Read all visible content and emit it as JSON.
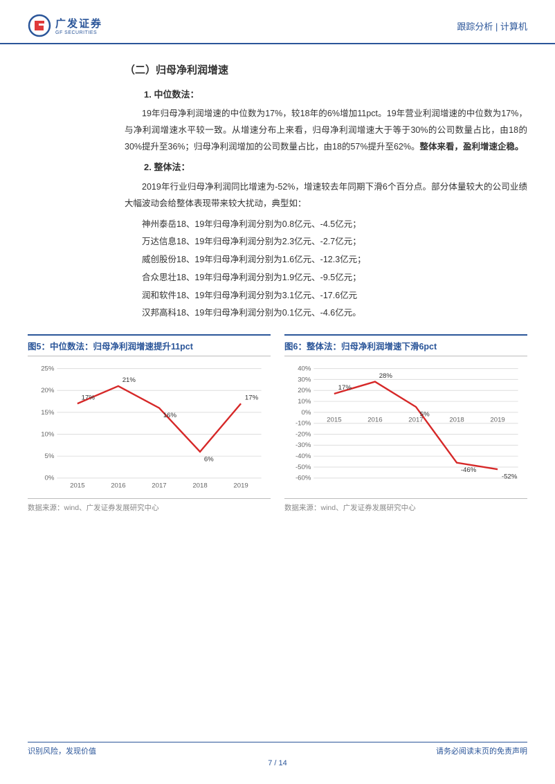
{
  "header": {
    "company_cn": "广发证券",
    "company_en": "GF SECURITIES",
    "right_text": "跟踪分析 | 计算机",
    "logo_color_red": "#e03a3a",
    "logo_color_blue": "#2a5599"
  },
  "section": {
    "h2": "（二）归母净利润增速",
    "sub1_title": "1.  中位数法：",
    "sub1_para": "19年归母净利润增速的中位数为17%，较18年的6%增加11pct。19年营业利润增速的中位数为17%，与净利润增速水平较一致。从增速分布上来看，归母净利润增速大于等于30%的公司数量占比，由18的30%提升至36%；归母净利润增加的公司数量占比，由18的57%提升至62%。",
    "sub1_bold_tail": "整体来看，盈利增速企稳。",
    "sub2_title": "2.  整体法：",
    "sub2_para": "2019年行业归母净利润同比增速为-52%，增速较去年同期下滑6个百分点。部分体量较大的公司业绩大幅波动会给整体表现带来较大扰动，典型如：",
    "items": [
      "神州泰岳18、19年归母净利润分别为0.8亿元、-4.5亿元；",
      "万达信息18、19年归母净利润分别为2.3亿元、-2.7亿元；",
      "威创股份18、19年归母净利润分别为1.6亿元、-12.3亿元；",
      "合众思壮18、19年归母净利润分别为1.9亿元、-9.5亿元；",
      "润和软件18、19年归母净利润分别为3.1亿元、-17.6亿元",
      "汉邦高科18、19年归母净利润分别为0.1亿元、-4.6亿元。"
    ]
  },
  "chart5": {
    "title": "图5：中位数法：归母净利润增速提升11pct",
    "type": "line",
    "categories": [
      "2015",
      "2016",
      "2017",
      "2018",
      "2019"
    ],
    "values": [
      17,
      21,
      16,
      6,
      17
    ],
    "value_labels": [
      "17%",
      "21%",
      "16%",
      "6%",
      "17%"
    ],
    "ylim": [
      0,
      25
    ],
    "ytick_step": 5,
    "ytick_labels": [
      "0%",
      "5%",
      "10%",
      "15%",
      "20%",
      "25%"
    ],
    "line_color": "#d62828",
    "grid_color": "#dddddd",
    "background_color": "#ffffff",
    "label_fontsize": 10,
    "source": "数据来源：wind、广发证券发展研究中心"
  },
  "chart6": {
    "title": "图6：整体法：归母净利润增速下滑6pct",
    "type": "line",
    "categories": [
      "2015",
      "2016",
      "2017",
      "2018",
      "2019"
    ],
    "values": [
      17,
      28,
      5,
      -46,
      -52
    ],
    "value_labels": [
      "17%",
      "28%",
      "5%",
      "-46%",
      "-52%"
    ],
    "ylim": [
      -60,
      40
    ],
    "ytick_step": 10,
    "ytick_labels": [
      "-60%",
      "-50%",
      "-40%",
      "-30%",
      "-20%",
      "-10%",
      "0%",
      "10%",
      "20%",
      "30%",
      "40%"
    ],
    "line_color": "#d62828",
    "grid_color": "#dddddd",
    "background_color": "#ffffff",
    "label_fontsize": 10,
    "source": "数据来源：wind、广发证券发展研究中心"
  },
  "footer": {
    "left": "识别风险，发现价值",
    "right": "请务必阅读末页的免责声明",
    "page_current": "7",
    "page_total": "14",
    "page_sep": " / "
  }
}
